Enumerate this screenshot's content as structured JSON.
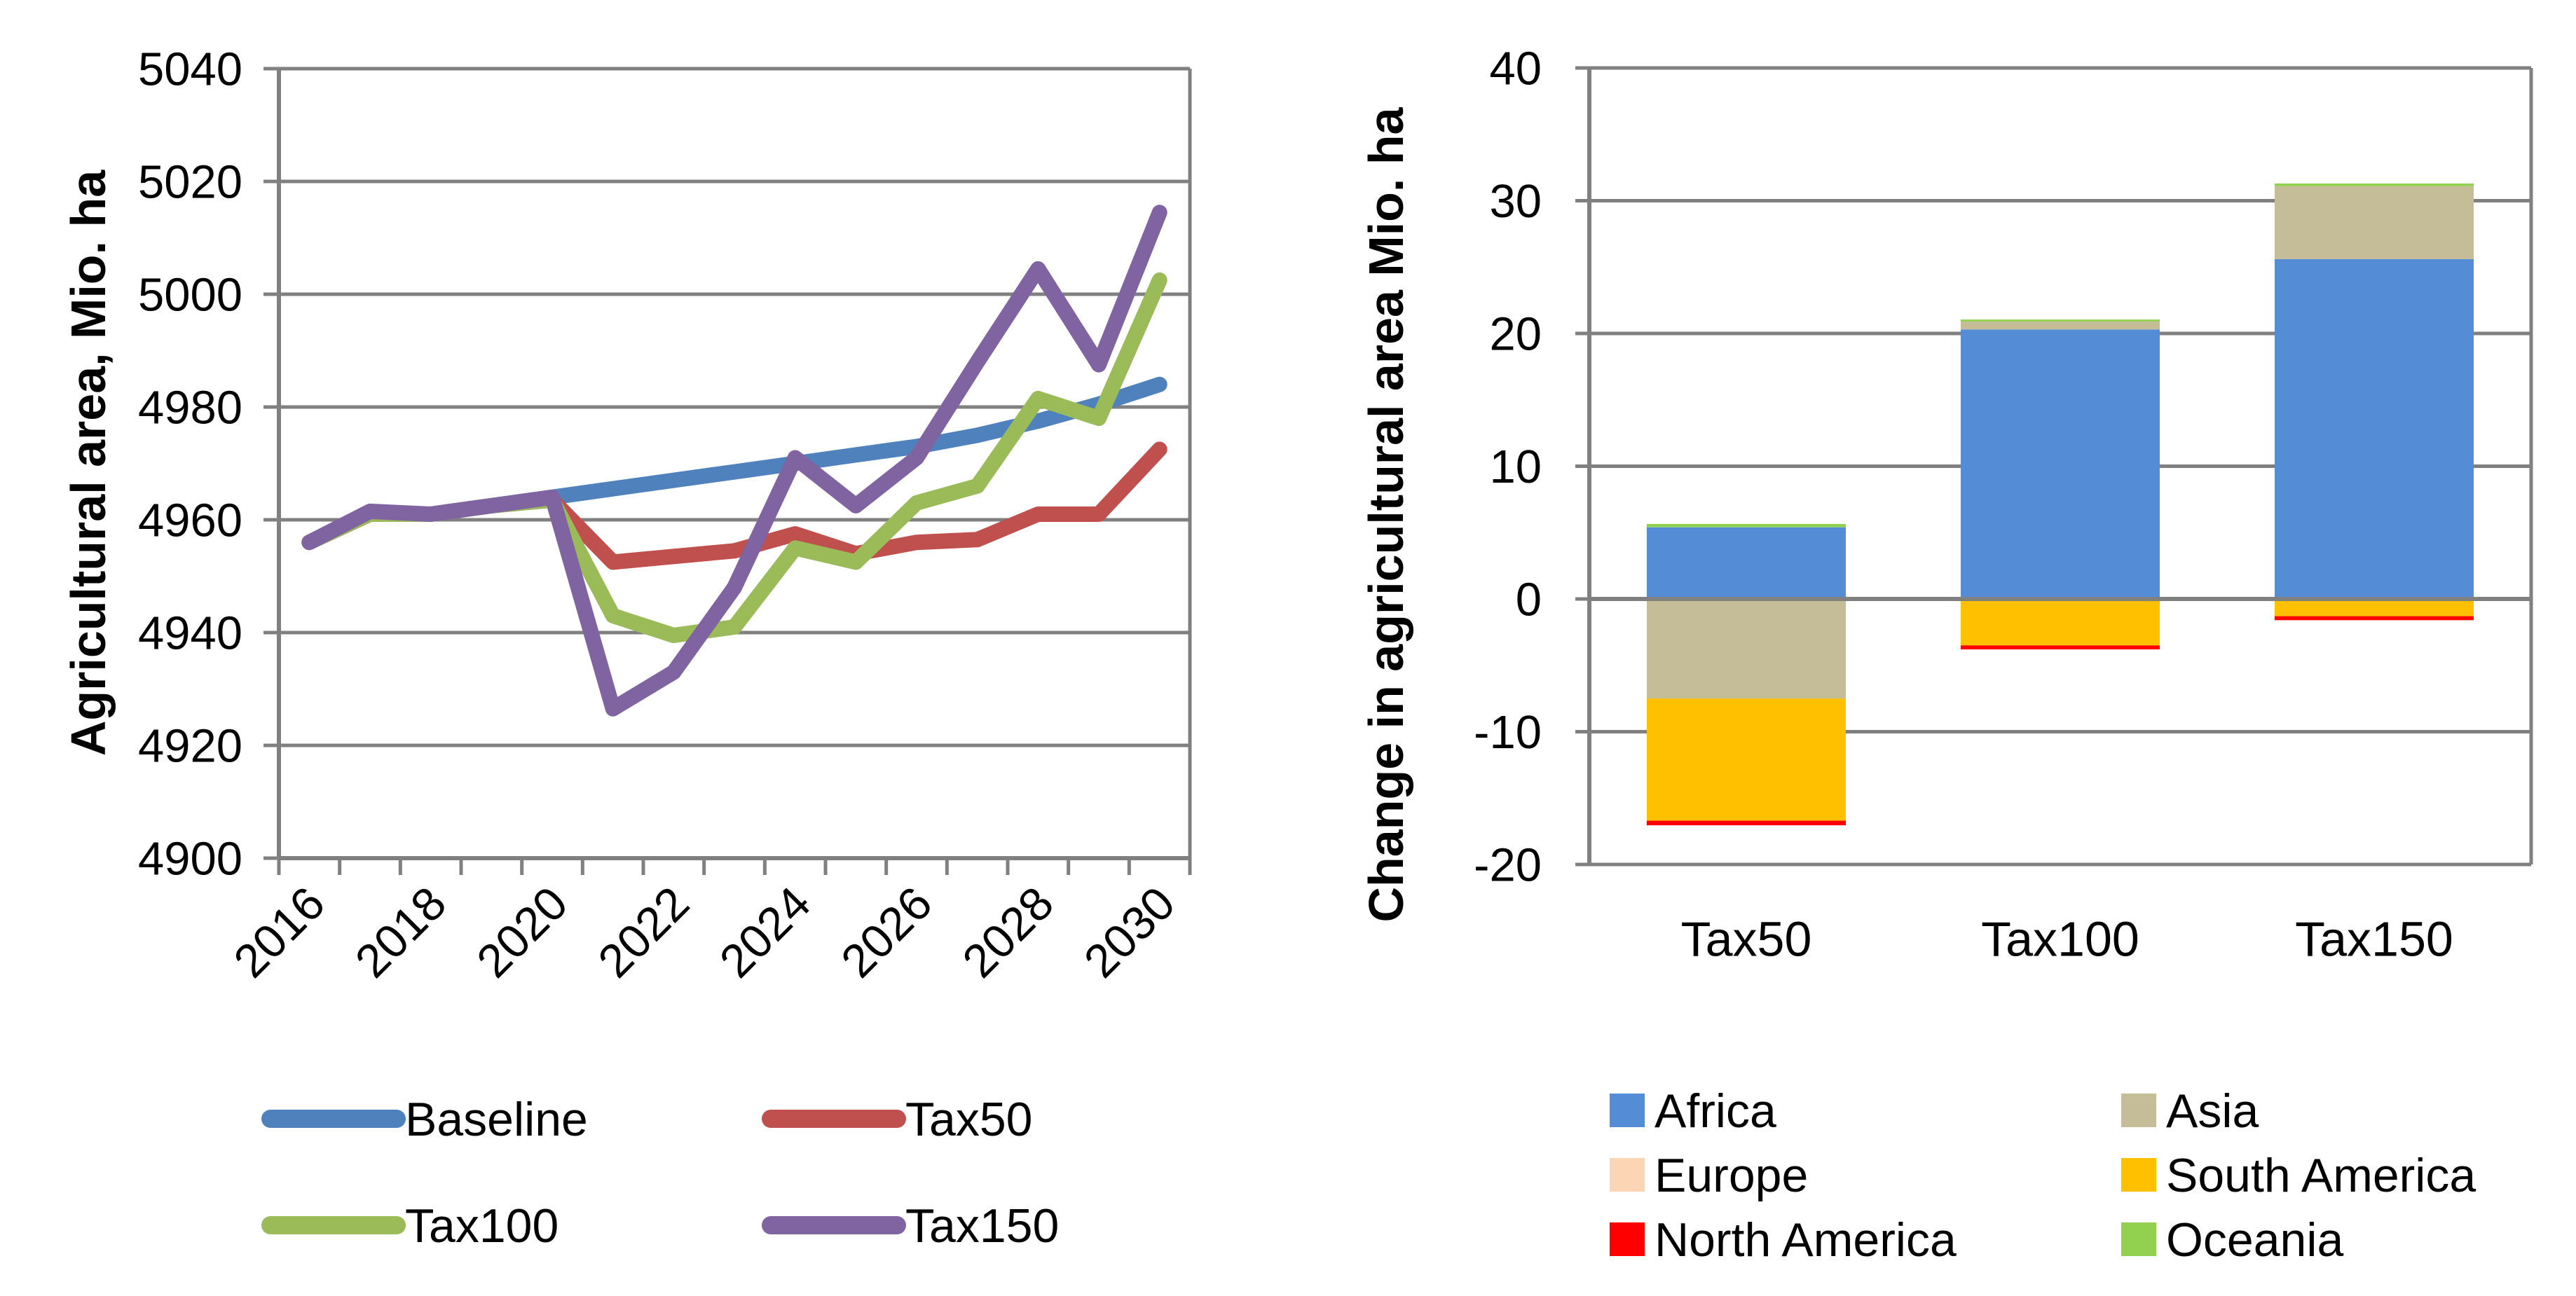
{
  "figure": {
    "background": "#FFFFFF",
    "description_left_axis_title": "Agricultural area, Mio. ha",
    "description_right_axis_title": "Change in agricultural area Mio. ha"
  },
  "colors": {
    "gridline": "#808080",
    "axis": "#808080",
    "text": "#000000",
    "background": "#FFFFFF"
  },
  "chart_data": [
    {
      "type": "line",
      "title": "",
      "xlabel": "",
      "ylabel": "Agricultural area, Mio. ha",
      "x": [
        2016,
        2017,
        2018,
        2019,
        2020,
        2021,
        2022,
        2023,
        2024,
        2025,
        2026,
        2027,
        2028,
        2029,
        2030
      ],
      "xtick_labels": [
        "2016",
        "2018",
        "2020",
        "2022",
        "2024",
        "2026",
        "2028",
        "2030"
      ],
      "ylim": [
        4900,
        5040
      ],
      "ytick_step": 20,
      "ytick_labels": [
        "5040",
        "5020",
        "5000",
        "4980",
        "4960",
        "4940",
        "4920",
        "4900"
      ],
      "grid": true,
      "legend_position": "bottom",
      "series": [
        {
          "name": "Baseline",
          "color": "#4F81BD",
          "values": [
            4956,
            4961,
            4961,
            4962.5,
            4964,
            4965.5,
            4967,
            4968.5,
            4970,
            4971.5,
            4973,
            4975,
            4977.5,
            4980.5,
            4984
          ]
        },
        {
          "name": "Tax50",
          "color": "#C0504D",
          "values": [
            4956,
            4961,
            4961,
            4962.5,
            4963.5,
            4952.5,
            4953.5,
            4954.5,
            4957.5,
            4954,
            4956,
            4956.5,
            4961,
            4961,
            4972.5
          ]
        },
        {
          "name": "Tax100",
          "color": "#9BBB59",
          "values": [
            4956,
            4961,
            4961,
            4962.5,
            4963.5,
            4943,
            4939.5,
            4941,
            4955,
            4952.5,
            4963,
            4966,
            4981.5,
            4978,
            5002.5
          ]
        },
        {
          "name": "Tax150",
          "color": "#8064A2",
          "values": [
            4956,
            4961.5,
            4961,
            4962.5,
            4964,
            4926.5,
            4933,
            4948,
            4971,
            4962.5,
            4971,
            4988,
            5004.5,
            4987.5,
            5014.5
          ]
        }
      ]
    },
    {
      "type": "bar",
      "stacked": true,
      "title": "",
      "xlabel": "",
      "ylabel": "Change in agricultural area Mio. ha",
      "categories": [
        "Tax50",
        "Tax100",
        "Tax150"
      ],
      "ylim": [
        -20,
        40
      ],
      "ytick_step": 10,
      "ytick_labels": [
        "40",
        "30",
        "20",
        "10",
        "0",
        "-10",
        "-20"
      ],
      "grid": true,
      "legend_position": "bottom",
      "series": [
        {
          "name": "Africa",
          "color": "#548CD5",
          "values": [
            5.4,
            20.3,
            25.6
          ]
        },
        {
          "name": "Asia",
          "color": "#C4BD97",
          "values": [
            -7.5,
            0.6,
            5.5
          ]
        },
        {
          "name": "Europe",
          "color": "#FCD5B5",
          "values": [
            0,
            0,
            0
          ]
        },
        {
          "name": "South America",
          "color": "#FFC000",
          "values": [
            -9.2,
            -3.5,
            -1.3
          ]
        },
        {
          "name": "North America",
          "color": "#FF0000",
          "values": [
            -0.35,
            -0.3,
            -0.3
          ]
        },
        {
          "name": "Oceania",
          "color": "#92D050",
          "values": [
            0.25,
            0.15,
            0.2
          ]
        }
      ]
    }
  ]
}
